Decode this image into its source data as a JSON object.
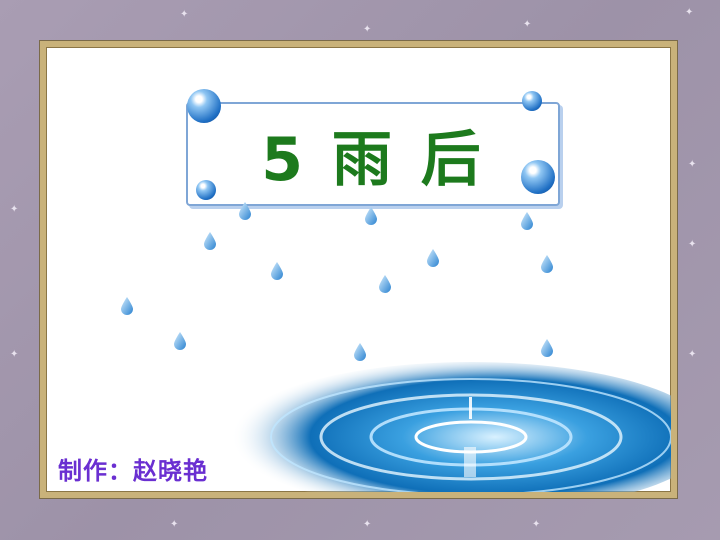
{
  "title": "5 雨 后",
  "author_line": "制作：赵晓艳",
  "colors": {
    "title": "#1d7a1d",
    "author": "#6a2fd1",
    "frame": "#c9b27a",
    "background": "#a99db3"
  }
}
